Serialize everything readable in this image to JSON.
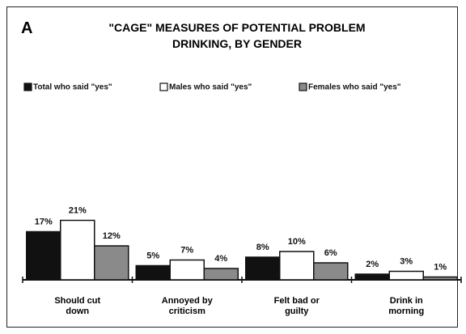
{
  "panel_label": "A",
  "chart_data": {
    "type": "bar",
    "title": "\"CAGE\" MEASURES OF POTENTIAL PROBLEM DRINKING, BY GENDER",
    "categories": [
      "Should cut down",
      "Annoyed by criticism",
      "Felt bad or guilty",
      "Drink in morning"
    ],
    "series": [
      {
        "name": "Total who said \"yes\"",
        "color": "#111111",
        "values": [
          17,
          5,
          8,
          2
        ],
        "value_labels": [
          "17%",
          "5%",
          "8%",
          "2%"
        ]
      },
      {
        "name": "Males who said \"yes\"",
        "color": "#ffffff",
        "values": [
          21,
          7,
          10,
          3
        ],
        "value_labels": [
          "21%",
          "7%",
          "10%",
          "3%"
        ]
      },
      {
        "name": "Females who said \"yes\"",
        "color": "#8a8a8a",
        "values": [
          12,
          4,
          6,
          1
        ],
        "value_labels": [
          "12%",
          "4%",
          "6%",
          "1%"
        ]
      }
    ]
  }
}
